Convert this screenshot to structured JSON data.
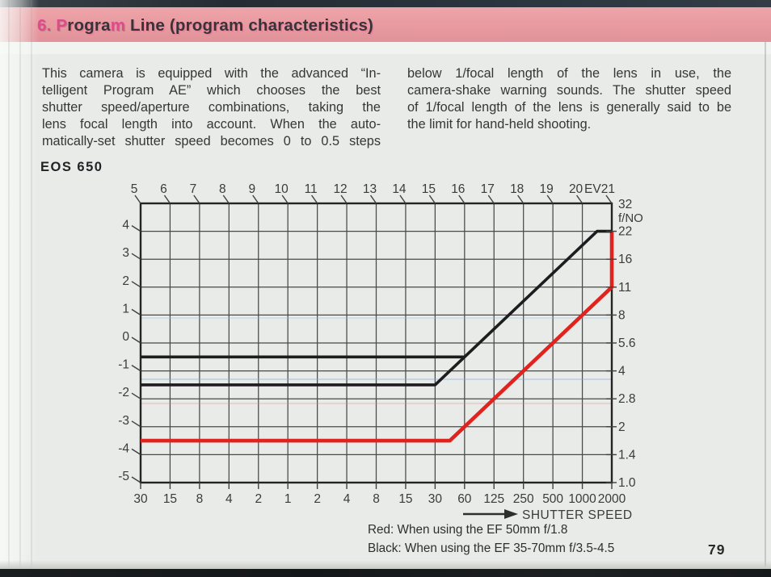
{
  "page": {
    "number": "79",
    "header": {
      "full_title": "6. Program Line (program characteristics)",
      "segments": [
        {
          "text": "6. ",
          "accent": true
        },
        {
          "text": "P",
          "accent": true
        },
        {
          "text": "rogra",
          "accent": false
        },
        {
          "text": "m",
          "accent": true
        },
        {
          "text": " Line (program characteristics)",
          "accent": false
        }
      ],
      "accent_color": "#e04a8c",
      "bar_color": "#e79aa0"
    },
    "intro": {
      "left_lines": [
        "This camera is equipped with the advanced “In-",
        "telligent Program AE” which chooses the best",
        "shutter speed/aperture combinations, taking the",
        "lens focal length into account. When the auto-",
        "matically-set shutter speed becomes 0 to 0.5 steps"
      ],
      "right_lines": [
        "below 1/focal length of the lens in use, the",
        "camera-shake warning sounds. The shutter speed",
        "of 1/focal length of the lens is generally said to be",
        "the limit for hand-held shooting."
      ]
    }
  },
  "chart_data": {
    "type": "line",
    "title": "EOS 650",
    "x_axis_top": {
      "unit": "EV",
      "ticks": [
        "5",
        "6",
        "7",
        "8",
        "9",
        "10",
        "11",
        "12",
        "13",
        "14",
        "15",
        "16",
        "17",
        "18",
        "19",
        "20",
        "EV21"
      ]
    },
    "x_axis_bottom": {
      "label": "SHUTTER SPEED",
      "ticks": [
        "30",
        "15",
        "8",
        "4",
        "2",
        "1",
        "2",
        "4",
        "8",
        "15",
        "30",
        "60",
        "125",
        "250",
        "500",
        "1000",
        "2000"
      ]
    },
    "y_axis_right": {
      "unit": "f/NO",
      "ticks": [
        "32",
        "22",
        "16",
        "11",
        "8",
        "5.6",
        "4",
        "2.8",
        "2",
        "1.4",
        "1.0"
      ]
    },
    "y_axis_left": {
      "ticks": [
        "4",
        "3",
        "2",
        "1",
        "0",
        "-1",
        "-2",
        "-3",
        "-4",
        "-5"
      ]
    },
    "x_range_ev": [
      5,
      21
    ],
    "y_range_stops": [
      0,
      10
    ],
    "units_note": "points are [EV, aperture stops above f/1.0]",
    "grid": true,
    "series": [
      {
        "name": "EF 50mm f/1.8",
        "color": "#e0231f",
        "width": 4.6,
        "points": [
          [
            5,
            1.5
          ],
          [
            15.5,
            1.5
          ],
          [
            21,
            7
          ],
          [
            21,
            9
          ]
        ]
      },
      {
        "name": "EF 35-70mm f/3.5-4.5 (f/3.5 limit)",
        "color": "#1d1d20",
        "width": 3.6,
        "points": [
          [
            5,
            3.5
          ],
          [
            15,
            3.5
          ],
          [
            20.5,
            9
          ],
          [
            21,
            9
          ]
        ]
      },
      {
        "name": "EF 35-70mm f/3.5-4.5 (f/4.5 limit)",
        "color": "#1d1d20",
        "width": 3.6,
        "points": [
          [
            5,
            4.5
          ],
          [
            16,
            4.5
          ]
        ]
      }
    ],
    "legend": [
      "Red: When using the EF 50mm f/1.8",
      "Black: When using the EF 35-70mm f/3.5-4.5"
    ]
  }
}
